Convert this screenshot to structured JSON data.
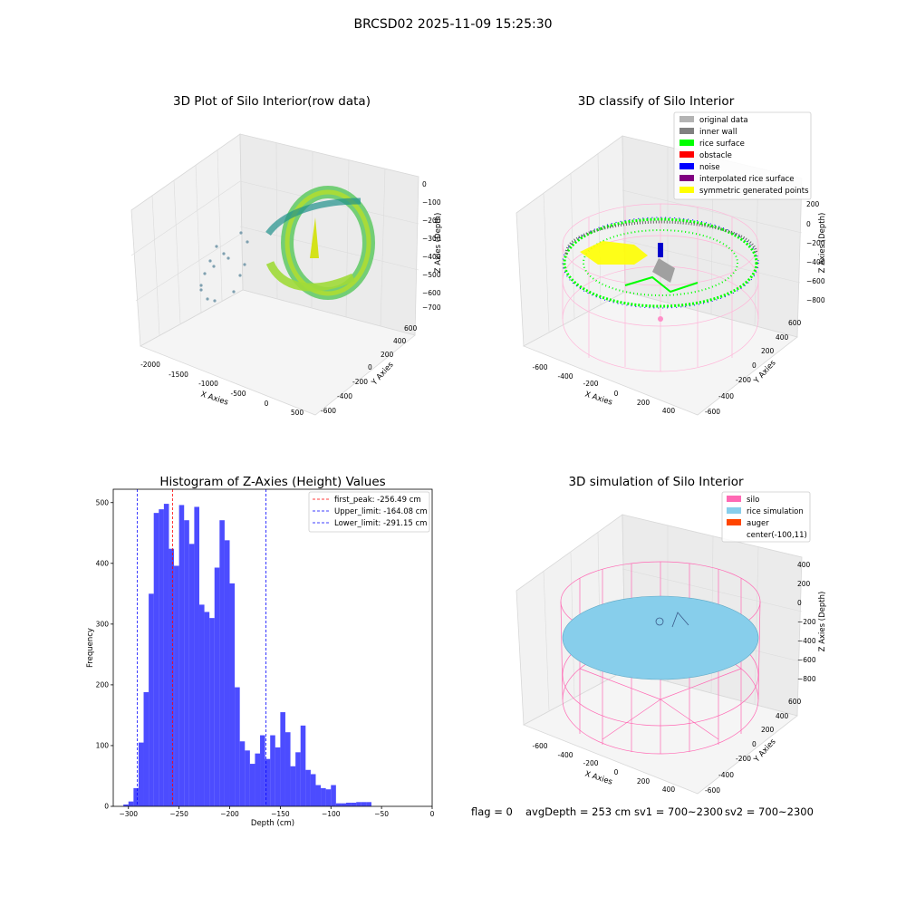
{
  "figure": {
    "suptitle": "BRCSD02 2025-11-09 15:25:30",
    "footer": {
      "flag": "flag = 0",
      "avg_depth": "avgDepth = 253 cm",
      "sv1": "sv1 = 700~2300",
      "sv2": "sv2 = 700~2300"
    }
  },
  "panels": {
    "raw": {
      "title": "3D Plot of Silo Interior(row data)",
      "xlabel": "X Axies",
      "ylabel": "Y Axies",
      "zlabel": "Z Axies (Depth)",
      "xticks": [
        "-2000",
        "-1500",
        "-1000",
        "-500",
        "0",
        "500"
      ],
      "yticks": [
        "-600",
        "-400",
        "-200",
        "0",
        "200",
        "400",
        "600"
      ],
      "zticks": [
        "0",
        "−100",
        "−200",
        "−300",
        "−400",
        "−500",
        "−600",
        "−700"
      ]
    },
    "classify": {
      "title": "3D classify of Silo Interior",
      "xlabel": "X Axies",
      "ylabel": "Y Axies",
      "zlabel": "Z Axies (Depth)",
      "xticks": [
        "-600",
        "-400",
        "-200",
        "0",
        "200",
        "400"
      ],
      "yticks": [
        "-600",
        "-400",
        "-200",
        "0",
        "200",
        "400",
        "600"
      ],
      "zticks": [
        "200",
        "0",
        "−200",
        "−400",
        "−600",
        "−800"
      ],
      "legend": [
        {
          "label": "original data",
          "color": "#b3b3b3"
        },
        {
          "label": "inner wall",
          "color": "#808080"
        },
        {
          "label": "rice surface",
          "color": "#00ff00"
        },
        {
          "label": "obstacle",
          "color": "#ff0000"
        },
        {
          "label": "noise",
          "color": "#0000ff"
        },
        {
          "label": "interpolated rice surface",
          "color": "#800080"
        },
        {
          "label": "symmetric generated points",
          "color": "#ffff00"
        }
      ]
    },
    "simulation": {
      "title": "3D simulation of Silo Interior",
      "xlabel": "X Axies",
      "ylabel": "Y Axies",
      "zlabel": "Z Axies (Depth)",
      "xticks": [
        "-600",
        "-400",
        "-200",
        "0",
        "200",
        "400"
      ],
      "yticks": [
        "-600",
        "-400",
        "-200",
        "0",
        "200",
        "400",
        "600"
      ],
      "zticks": [
        "400",
        "200",
        "0",
        "−200",
        "−400",
        "−600",
        "−800"
      ],
      "legend": [
        {
          "label": "silo",
          "color": "#ff69b4"
        },
        {
          "label": "rice simulation",
          "color": "#87ceeb"
        },
        {
          "label": "auger",
          "color": "#ff4500"
        },
        {
          "label": "center(-100,11)",
          "color": ""
        }
      ]
    }
  },
  "chart_data": [
    {
      "type": "histogram",
      "title": "Histogram of Z-Axies (Height) Values",
      "xlabel": "Depth (cm)",
      "ylabel": "Frequency",
      "xlim": [
        -315,
        0
      ],
      "ylim": [
        0,
        522
      ],
      "xticks": [
        -300,
        -250,
        -200,
        -150,
        -100,
        -50,
        0
      ],
      "yticks": [
        0,
        100,
        200,
        300,
        400,
        500
      ],
      "bar_color": "#0000ff",
      "bin_width": 5,
      "bin_starts": [
        -305,
        -300,
        -295,
        -290,
        -285,
        -280,
        -275,
        -270,
        -265,
        -260,
        -255,
        -250,
        -245,
        -240,
        -235,
        -230,
        -225,
        -220,
        -215,
        -210,
        -205,
        -200,
        -195,
        -190,
        -185,
        -180,
        -175,
        -170,
        -165,
        -160,
        -155,
        -150,
        -145,
        -140,
        -135,
        -130,
        -125,
        -120,
        -115,
        -110,
        -105,
        -100,
        -95,
        -90,
        -85,
        -80,
        -75,
        -70,
        -65,
        -60,
        -55,
        -50,
        -45,
        -40,
        -35,
        -30,
        -25,
        -20,
        -15
      ],
      "counts": [
        3,
        8,
        30,
        105,
        188,
        350,
        483,
        489,
        498,
        424,
        396,
        496,
        471,
        432,
        493,
        332,
        320,
        310,
        393,
        471,
        438,
        367,
        196,
        107,
        92,
        70,
        87,
        117,
        78,
        117,
        97,
        155,
        122,
        66,
        89,
        133,
        60,
        53,
        35,
        30,
        28,
        35,
        5,
        5,
        6,
        6,
        7,
        7,
        7,
        0,
        0,
        0,
        0,
        0,
        0,
        0,
        0,
        0,
        0
      ],
      "lines": [
        {
          "label": "first_peak: -256.49 cm",
          "x": -256.49,
          "color": "#ff0000"
        },
        {
          "label": "Upper_limit: -164.08 cm",
          "x": -164.08,
          "color": "#0000ff"
        },
        {
          "label": "Lower_limit: -291.15 cm",
          "x": -291.15,
          "color": "#0000ff"
        }
      ],
      "legend_position": "upper right"
    }
  ]
}
